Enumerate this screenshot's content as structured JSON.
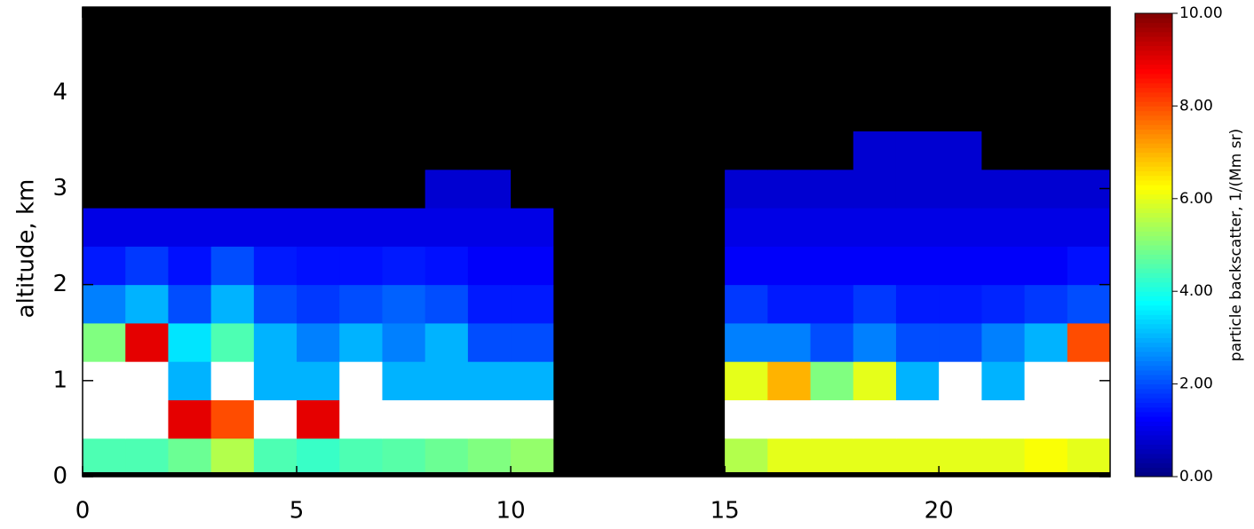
{
  "chart_data": {
    "type": "heatmap",
    "ylabel": "altitude, km",
    "colorbar_label": "particle backscatter, 1/(Mm sr)",
    "colormap": "jet",
    "missing_color": "#000000",
    "over_color": "#ffffff",
    "xlim": [
      0,
      24
    ],
    "ylim": [
      0,
      4.89
    ],
    "xticks": [
      0,
      5,
      10,
      15,
      20
    ],
    "yticks": [
      0,
      1,
      2,
      3,
      4
    ],
    "zlim": [
      0,
      10
    ],
    "zticks": [
      {
        "value": 0,
        "label": "0.00"
      },
      {
        "value": 2,
        "label": "2.00"
      },
      {
        "value": 4,
        "label": "4.00"
      },
      {
        "value": 6,
        "label": "6.00"
      },
      {
        "value": 8,
        "label": "8.00"
      },
      {
        "value": 10,
        "label": "10.00"
      }
    ],
    "xbins": [
      0,
      1,
      2,
      3,
      4,
      5,
      6,
      7,
      8,
      9,
      10,
      11,
      12,
      13,
      14,
      15,
      16,
      17,
      18,
      19,
      20,
      21,
      22,
      23,
      24
    ],
    "ybins": [
      0,
      0.4,
      0.8,
      1.2,
      1.6,
      2.0,
      2.4,
      2.8,
      3.2,
      3.6,
      4.0,
      4.4,
      4.8
    ],
    "values": [
      [
        4.5,
        4.5,
        4.8,
        5.5,
        4.5,
        4.3,
        4.5,
        4.6,
        4.8,
        5,
        5.2,
        null,
        null,
        null,
        null,
        5.5,
        6,
        6,
        6,
        6,
        6,
        6,
        6.2,
        6
      ],
      [
        12,
        12,
        9,
        8,
        12,
        9,
        12,
        12,
        12,
        12,
        12,
        null,
        null,
        null,
        null,
        12,
        12,
        12,
        12,
        12,
        12,
        12,
        12,
        12
      ],
      [
        12,
        12,
        3,
        12,
        3,
        3,
        12,
        3,
        3,
        3,
        3,
        null,
        null,
        null,
        null,
        6,
        7,
        5,
        6,
        3,
        12,
        3,
        12,
        12
      ],
      [
        5,
        9,
        3.5,
        4.5,
        3,
        2.5,
        3,
        2.5,
        3,
        2,
        2,
        null,
        null,
        null,
        null,
        2.5,
        2.5,
        2,
        2.5,
        2,
        2,
        2.5,
        3,
        8
      ],
      [
        2.5,
        3,
        2,
        3,
        2,
        1.8,
        2,
        2.2,
        2,
        1.5,
        1.5,
        null,
        null,
        null,
        null,
        1.8,
        1.5,
        1.5,
        1.8,
        1.5,
        1.5,
        1.6,
        1.8,
        2
      ],
      [
        1.5,
        1.8,
        1.4,
        2,
        1.5,
        1.4,
        1.4,
        1.5,
        1.4,
        1.2,
        1.2,
        null,
        null,
        null,
        null,
        1.2,
        1.2,
        1.2,
        1.2,
        1.2,
        1.2,
        1.2,
        1.2,
        1.4
      ],
      [
        1,
        1,
        1,
        1,
        1,
        1,
        1,
        1,
        1,
        1,
        1,
        null,
        null,
        null,
        null,
        1,
        1,
        1,
        1,
        1,
        1,
        1,
        1,
        1
      ],
      [
        null,
        null,
        null,
        null,
        null,
        null,
        null,
        null,
        0.8,
        0.8,
        null,
        null,
        null,
        null,
        null,
        0.8,
        0.8,
        0.8,
        0.8,
        0.8,
        0.8,
        0.8,
        0.8,
        0.8
      ],
      [
        null,
        null,
        null,
        null,
        null,
        null,
        null,
        null,
        null,
        null,
        null,
        null,
        null,
        null,
        null,
        null,
        null,
        null,
        0.8,
        0.8,
        0.8,
        null,
        null,
        null
      ],
      [
        null,
        null,
        null,
        null,
        null,
        null,
        null,
        null,
        null,
        null,
        null,
        null,
        null,
        null,
        null,
        null,
        null,
        null,
        null,
        null,
        null,
        null,
        null,
        null
      ],
      [
        null,
        null,
        null,
        null,
        null,
        null,
        null,
        null,
        null,
        null,
        null,
        null,
        null,
        null,
        null,
        null,
        null,
        null,
        null,
        null,
        null,
        null,
        null,
        null
      ],
      [
        null,
        null,
        null,
        null,
        null,
        null,
        null,
        null,
        null,
        null,
        null,
        null,
        null,
        null,
        null,
        null,
        null,
        null,
        null,
        null,
        null,
        null,
        null,
        null
      ]
    ]
  }
}
